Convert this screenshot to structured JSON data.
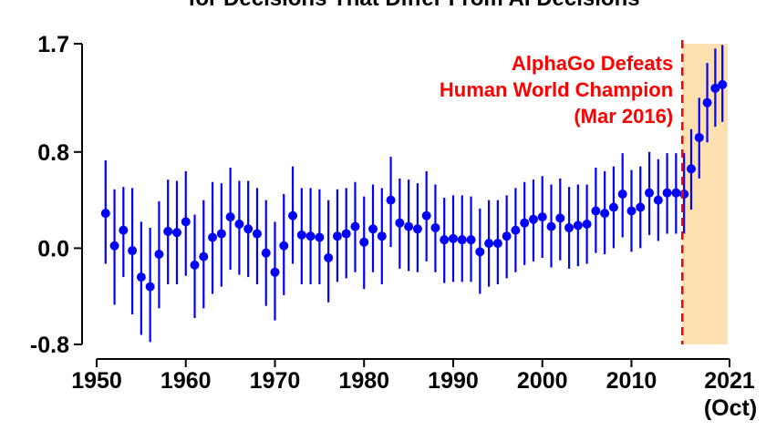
{
  "chart_data": {
    "type": "scatter",
    "title": "for Decisions That Differ From AI Decisions",
    "xlabel": "",
    "ylabel": "",
    "xlim": [
      1950,
      2021
    ],
    "ylim": [
      -0.8,
      1.7
    ],
    "x_ticks": [
      {
        "value": 1950,
        "label": "1950"
      },
      {
        "value": 1960,
        "label": "1960"
      },
      {
        "value": 1970,
        "label": "1970"
      },
      {
        "value": 1980,
        "label": "1980"
      },
      {
        "value": 1990,
        "label": "1990"
      },
      {
        "value": 2000,
        "label": "2000"
      },
      {
        "value": 2010,
        "label": "2010"
      },
      {
        "value": 2021,
        "label": "2021",
        "sublabel": "(Oct)"
      }
    ],
    "y_ticks": [
      {
        "value": -0.8,
        "label": "-0.8"
      },
      {
        "value": 0.0,
        "label": "0.0"
      },
      {
        "value": 0.8,
        "label": "0.8"
      },
      {
        "value": 1.7,
        "label": "1.7"
      }
    ],
    "grid": false,
    "legend": "none",
    "marker_color": "#0000ff",
    "event_line": {
      "x": 2015.7,
      "color": "#ff0000",
      "style": "dashed"
    },
    "shaded_region": {
      "x_start": 2015.7,
      "x_end": 2020.8,
      "color": "#fddfb0"
    },
    "annotation": {
      "lines": [
        "AlphaGo Defeats",
        "Human World Champion",
        "(Mar 2016)"
      ],
      "color": "#ff0000"
    },
    "series": [
      {
        "points": [
          {
            "x": 1951,
            "y": 0.29,
            "lo": -0.13,
            "hi": 0.73
          },
          {
            "x": 1952,
            "y": 0.02,
            "lo": -0.47,
            "hi": 0.49
          },
          {
            "x": 1953,
            "y": 0.15,
            "lo": -0.24,
            "hi": 0.51
          },
          {
            "x": 1954,
            "y": -0.02,
            "lo": -0.55,
            "hi": 0.5
          },
          {
            "x": 1955,
            "y": -0.24,
            "lo": -0.72,
            "hi": 0.22
          },
          {
            "x": 1956,
            "y": -0.32,
            "lo": -0.78,
            "hi": 0.17
          },
          {
            "x": 1957,
            "y": -0.05,
            "lo": -0.5,
            "hi": 0.39
          },
          {
            "x": 1958,
            "y": 0.14,
            "lo": -0.3,
            "hi": 0.57
          },
          {
            "x": 1959,
            "y": 0.13,
            "lo": -0.3,
            "hi": 0.56
          },
          {
            "x": 1960,
            "y": 0.22,
            "lo": -0.23,
            "hi": 0.64
          },
          {
            "x": 1961,
            "y": -0.14,
            "lo": -0.58,
            "hi": 0.28
          },
          {
            "x": 1962,
            "y": -0.07,
            "lo": -0.5,
            "hi": 0.4
          },
          {
            "x": 1963,
            "y": 0.09,
            "lo": -0.38,
            "hi": 0.55
          },
          {
            "x": 1964,
            "y": 0.12,
            "lo": -0.32,
            "hi": 0.54
          },
          {
            "x": 1965,
            "y": 0.26,
            "lo": -0.18,
            "hi": 0.67
          },
          {
            "x": 1966,
            "y": 0.2,
            "lo": -0.22,
            "hi": 0.56
          },
          {
            "x": 1967,
            "y": 0.16,
            "lo": -0.24,
            "hi": 0.56
          },
          {
            "x": 1968,
            "y": 0.12,
            "lo": -0.3,
            "hi": 0.5
          },
          {
            "x": 1969,
            "y": -0.04,
            "lo": -0.48,
            "hi": 0.4
          },
          {
            "x": 1970,
            "y": -0.2,
            "lo": -0.6,
            "hi": 0.22
          },
          {
            "x": 1971,
            "y": 0.02,
            "lo": -0.39,
            "hi": 0.45
          },
          {
            "x": 1972,
            "y": 0.27,
            "lo": -0.13,
            "hi": 0.68
          },
          {
            "x": 1973,
            "y": 0.11,
            "lo": -0.3,
            "hi": 0.5
          },
          {
            "x": 1974,
            "y": 0.1,
            "lo": -0.3,
            "hi": 0.5
          },
          {
            "x": 1975,
            "y": 0.09,
            "lo": -0.3,
            "hi": 0.49
          },
          {
            "x": 1976,
            "y": -0.08,
            "lo": -0.45,
            "hi": 0.4
          },
          {
            "x": 1977,
            "y": 0.1,
            "lo": -0.28,
            "hi": 0.49
          },
          {
            "x": 1978,
            "y": 0.12,
            "lo": -0.25,
            "hi": 0.5
          },
          {
            "x": 1979,
            "y": 0.18,
            "lo": -0.2,
            "hi": 0.55
          },
          {
            "x": 1980,
            "y": 0.05,
            "lo": -0.34,
            "hi": 0.43
          },
          {
            "x": 1981,
            "y": 0.16,
            "lo": -0.2,
            "hi": 0.53
          },
          {
            "x": 1982,
            "y": 0.1,
            "lo": -0.3,
            "hi": 0.5
          },
          {
            "x": 1983,
            "y": 0.4,
            "lo": 0.01,
            "hi": 0.76
          },
          {
            "x": 1984,
            "y": 0.21,
            "lo": -0.17,
            "hi": 0.58
          },
          {
            "x": 1985,
            "y": 0.18,
            "lo": -0.19,
            "hi": 0.57
          },
          {
            "x": 1986,
            "y": 0.16,
            "lo": -0.2,
            "hi": 0.54
          },
          {
            "x": 1987,
            "y": 0.27,
            "lo": -0.11,
            "hi": 0.64
          },
          {
            "x": 1988,
            "y": 0.17,
            "lo": -0.2,
            "hi": 0.53
          },
          {
            "x": 1989,
            "y": 0.07,
            "lo": -0.29,
            "hi": 0.42
          },
          {
            "x": 1990,
            "y": 0.08,
            "lo": -0.28,
            "hi": 0.44
          },
          {
            "x": 1991,
            "y": 0.07,
            "lo": -0.28,
            "hi": 0.44
          },
          {
            "x": 1992,
            "y": 0.07,
            "lo": -0.28,
            "hi": 0.43
          },
          {
            "x": 1993,
            "y": -0.03,
            "lo": -0.38,
            "hi": 0.33
          },
          {
            "x": 1994,
            "y": 0.04,
            "lo": -0.32,
            "hi": 0.4
          },
          {
            "x": 1995,
            "y": 0.04,
            "lo": -0.3,
            "hi": 0.4
          },
          {
            "x": 1996,
            "y": 0.1,
            "lo": -0.25,
            "hi": 0.44
          },
          {
            "x": 1997,
            "y": 0.15,
            "lo": -0.2,
            "hi": 0.5
          },
          {
            "x": 1998,
            "y": 0.21,
            "lo": -0.14,
            "hi": 0.55
          },
          {
            "x": 1999,
            "y": 0.24,
            "lo": -0.11,
            "hi": 0.57
          },
          {
            "x": 2000,
            "y": 0.26,
            "lo": -0.08,
            "hi": 0.6
          },
          {
            "x": 2001,
            "y": 0.18,
            "lo": -0.16,
            "hi": 0.53
          },
          {
            "x": 2002,
            "y": 0.25,
            "lo": -0.1,
            "hi": 0.58
          },
          {
            "x": 2003,
            "y": 0.17,
            "lo": -0.17,
            "hi": 0.51
          },
          {
            "x": 2004,
            "y": 0.19,
            "lo": -0.15,
            "hi": 0.53
          },
          {
            "x": 2005,
            "y": 0.2,
            "lo": -0.13,
            "hi": 0.53
          },
          {
            "x": 2006,
            "y": 0.31,
            "lo": -0.04,
            "hi": 0.67
          },
          {
            "x": 2007,
            "y": 0.29,
            "lo": -0.05,
            "hi": 0.64
          },
          {
            "x": 2008,
            "y": 0.34,
            "lo": 0.0,
            "hi": 0.68
          },
          {
            "x": 2009,
            "y": 0.45,
            "lo": 0.09,
            "hi": 0.79
          },
          {
            "x": 2010,
            "y": 0.31,
            "lo": -0.03,
            "hi": 0.65
          },
          {
            "x": 2011,
            "y": 0.34,
            "lo": 0.0,
            "hi": 0.68
          },
          {
            "x": 2012,
            "y": 0.46,
            "lo": 0.11,
            "hi": 0.8
          },
          {
            "x": 2013,
            "y": 0.4,
            "lo": 0.06,
            "hi": 0.74
          },
          {
            "x": 2014,
            "y": 0.46,
            "lo": 0.12,
            "hi": 0.79
          },
          {
            "x": 2015,
            "y": 0.46,
            "lo": 0.12,
            "hi": 0.79
          },
          {
            "x": 2015.9,
            "y": 0.45,
            "lo": 0.12,
            "hi": 0.79
          },
          {
            "x": 2016.7,
            "y": 0.66,
            "lo": 0.32,
            "hi": 0.99
          },
          {
            "x": 2017.6,
            "y": 0.92,
            "lo": 0.58,
            "hi": 1.25
          },
          {
            "x": 2018.5,
            "y": 1.21,
            "lo": 0.88,
            "hi": 1.54
          },
          {
            "x": 2019.4,
            "y": 1.33,
            "lo": 1.01,
            "hi": 1.66
          },
          {
            "x": 2020.2,
            "y": 1.36,
            "lo": 1.05,
            "hi": 1.69
          }
        ]
      }
    ]
  }
}
